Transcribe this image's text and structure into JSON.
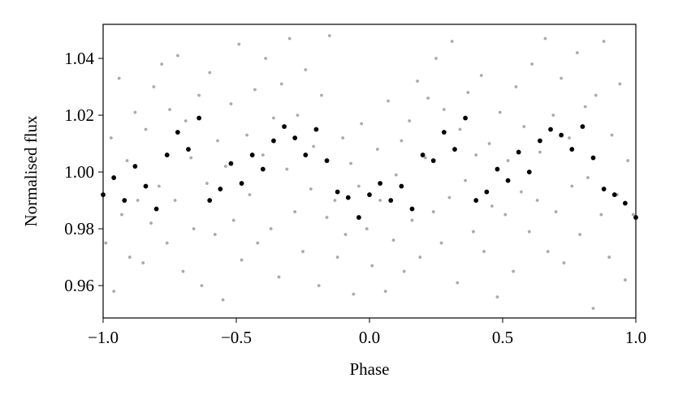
{
  "chart_data": {
    "type": "scatter",
    "xlabel": "Phase",
    "ylabel": "Normalised flux",
    "xlim": [
      -1,
      1
    ],
    "ylim": [
      0.9486,
      1.052
    ],
    "xticks": [
      {
        "value": -1,
        "label": "−1.0"
      },
      {
        "value": -0.5,
        "label": "−0.5"
      },
      {
        "value": 0,
        "label": "0.0"
      },
      0.5,
      {
        "value": 1,
        "label": "1.0"
      }
    ],
    "yticks": [
      0.96,
      0.98,
      {
        "value": 1,
        "label": "1.00"
      },
      1.02,
      1.04
    ],
    "series": [
      {
        "color": "#aaaaaa",
        "x": [
          -0.99,
          -0.97,
          -0.96,
          -0.94,
          -0.93,
          -0.91,
          -0.9,
          -0.88,
          -0.87,
          -0.85,
          -0.84,
          -0.82,
          -0.81,
          -0.79,
          -0.78,
          -0.76,
          -0.75,
          -0.73,
          -0.72,
          -0.7,
          -0.69,
          -0.67,
          -0.66,
          -0.64,
          -0.63,
          -0.61,
          -0.6,
          -0.58,
          -0.57,
          -0.55,
          -0.54,
          -0.52,
          -0.51,
          -0.49,
          -0.48,
          -0.46,
          -0.45,
          -0.43,
          -0.42,
          -0.4,
          -0.39,
          -0.37,
          -0.36,
          -0.34,
          -0.33,
          -0.31,
          -0.3,
          -0.28,
          -0.27,
          -0.25,
          -0.24,
          -0.22,
          -0.21,
          -0.19,
          -0.18,
          -0.16,
          -0.15,
          -0.13,
          -0.12,
          -0.1,
          -0.09,
          -0.07,
          -0.06,
          -0.04,
          -0.03,
          -0.01,
          0.01,
          0.03,
          0.04,
          0.06,
          0.07,
          0.09,
          0.1,
          0.12,
          0.13,
          0.15,
          0.16,
          0.18,
          0.19,
          0.21,
          0.22,
          0.24,
          0.25,
          0.27,
          0.28,
          0.3,
          0.31,
          0.33,
          0.34,
          0.36,
          0.37,
          0.39,
          0.4,
          0.42,
          0.43,
          0.45,
          0.46,
          0.48,
          0.49,
          0.51,
          0.52,
          0.54,
          0.55,
          0.57,
          0.58,
          0.6,
          0.61,
          0.63,
          0.64,
          0.66,
          0.67,
          0.69,
          0.7,
          0.72,
          0.73,
          0.75,
          0.76,
          0.78,
          0.79,
          0.81,
          0.82,
          0.84,
          0.85,
          0.87,
          0.88,
          0.9,
          0.91,
          0.93,
          0.94,
          0.96,
          0.97,
          0.99
        ],
        "values": [
          0.975,
          1.012,
          0.958,
          1.033,
          0.985,
          1.004,
          0.97,
          1.021,
          0.99,
          0.968,
          1.015,
          0.982,
          1.03,
          0.995,
          1.038,
          0.975,
          1.022,
          0.99,
          1.041,
          0.965,
          1.018,
          1.005,
          0.98,
          1.027,
          0.96,
          0.996,
          1.035,
          0.978,
          1.011,
          0.955,
          1.002,
          1.024,
          0.983,
          1.045,
          0.969,
          1.013,
          0.992,
          1.029,
          0.975,
          1.006,
          1.04,
          0.98,
          1.019,
          0.963,
          1.031,
          1.001,
          1.047,
          0.986,
          1.02,
          0.972,
          1.036,
          0.994,
          1.009,
          0.96,
          1.027,
          0.984,
          1.048,
          0.99,
          0.97,
          1.012,
          0.978,
          1.003,
          0.957,
          0.995,
          1.017,
          0.98,
          0.967,
          1.008,
          0.99,
          0.958,
          1.025,
          0.976,
          0.999,
          1.011,
          0.965,
          1.018,
          0.983,
          1.032,
          0.97,
          1.005,
          1.026,
          0.986,
          1.04,
          0.975,
          1.022,
          0.991,
          1.046,
          0.961,
          1.015,
          0.997,
          1.028,
          0.979,
          1.006,
          1.034,
          0.972,
          1.01,
          0.988,
          0.956,
          1.021,
          0.985,
          1.004,
          0.965,
          1.03,
          0.993,
          1.016,
          0.979,
          1.038,
          0.99,
          1.007,
          1.047,
          0.972,
          1.02,
          0.986,
          1.033,
          0.968,
          1.012,
          0.995,
          1.042,
          0.978,
          1.023,
          0.998,
          0.952,
          1.027,
          0.985,
          1.046,
          0.97,
          1.013,
          0.992,
          1.031,
          0.962,
          1.004,
          0.985
        ]
      },
      {
        "color": "#000000",
        "x": [
          -1,
          -0.96,
          -0.92,
          -0.88,
          -0.84,
          -0.8,
          -0.76,
          -0.72,
          -0.68,
          -0.64,
          -0.6,
          -0.56,
          -0.52,
          -0.48,
          -0.44,
          -0.4,
          -0.36,
          -0.32,
          -0.28,
          -0.24,
          -0.2,
          -0.16,
          -0.12,
          -0.08,
          -0.04,
          0,
          0.04,
          0.08,
          0.12,
          0.16,
          0.2,
          0.24,
          0.28,
          0.32,
          0.36,
          0.4,
          0.44,
          0.48,
          0.52,
          0.56,
          0.6,
          0.64,
          0.68,
          0.72,
          0.76,
          0.8,
          0.84,
          0.88,
          0.92,
          0.96,
          1
        ],
        "values": [
          0.992,
          0.998,
          0.99,
          1.002,
          0.995,
          0.987,
          1.006,
          1.014,
          1.008,
          1.019,
          0.99,
          0.994,
          1.003,
          0.996,
          1.006,
          1.001,
          1.011,
          1.016,
          1.012,
          1.006,
          1.015,
          1.004,
          0.993,
          0.991,
          0.984,
          0.992,
          0.996,
          0.99,
          0.995,
          0.987,
          1.006,
          1.004,
          1.014,
          1.008,
          1.019,
          0.99,
          0.993,
          1.001,
          0.997,
          1.007,
          1.0,
          1.011,
          1.015,
          1.013,
          1.008,
          1.016,
          1.005,
          0.994,
          0.992,
          0.989,
          0.984
        ]
      }
    ]
  }
}
